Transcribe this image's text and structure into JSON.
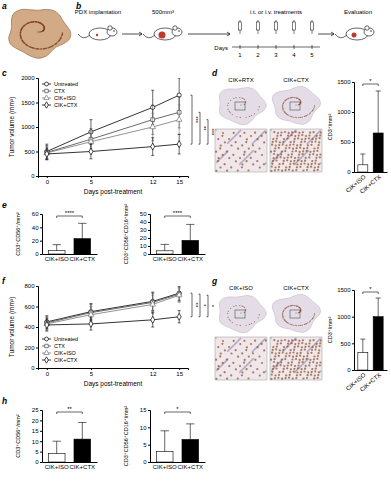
{
  "chart_data": [
    {
      "type": "line",
      "xlabel": "Days post-treatment",
      "ylabel": "Tumor volume (mm³)",
      "x": [
        0,
        5,
        12,
        15
      ],
      "xlim": [
        -1,
        16
      ],
      "xticks": [
        0,
        5,
        12,
        15
      ],
      "ylim": [
        0,
        2000
      ],
      "yticks": [
        0,
        500,
        1000,
        1500,
        2000
      ],
      "legend": "upper left",
      "series": [
        {
          "name": "Untreated",
          "color": "#000000",
          "marker": "circle",
          "values": [
            500,
            900,
            1400,
            1650
          ],
          "errors": [
            150,
            250,
            350,
            350
          ]
        },
        {
          "name": "CTX",
          "color": "#444444",
          "marker": "square",
          "values": [
            480,
            750,
            1150,
            1300
          ],
          "errors": [
            140,
            220,
            300,
            320
          ]
        },
        {
          "name": "CIK+ISO",
          "color": "#777777",
          "marker": "triangle",
          "values": [
            470,
            700,
            1000,
            1150
          ],
          "errors": [
            130,
            200,
            280,
            300
          ]
        },
        {
          "name": "CIK+CTX",
          "color": "#000000",
          "marker": "diamond",
          "values": [
            450,
            500,
            600,
            650
          ],
          "errors": [
            120,
            150,
            180,
            200
          ]
        }
      ],
      "significance": [
        "***",
        "**",
        "***"
      ]
    },
    {
      "type": "bar",
      "ylabel": "CD3⁺/mm²",
      "categories": [
        "CIK+ISO",
        "CIK+CTX"
      ],
      "values": [
        120,
        650
      ],
      "errors": [
        180,
        700
      ],
      "colors": [
        "#ffffff",
        "#000000"
      ],
      "ylim": [
        0,
        1500
      ],
      "yticks": [
        0,
        500,
        1000,
        1500
      ],
      "significance": "*"
    },
    {
      "type": "bar",
      "ylabel": "CD3⁺CD56⁺/mm²",
      "categories": [
        "CIK+ISO",
        "CIK+CTX"
      ],
      "values": [
        5,
        23
      ],
      "errors": [
        9,
        23
      ],
      "colors": [
        "#ffffff",
        "#000000"
      ],
      "ylim": [
        0,
        60
      ],
      "yticks": [
        0,
        20,
        40,
        60
      ],
      "significance": "****"
    },
    {
      "type": "bar",
      "ylabel": "CD3⁺CD56⁺CD16⁺/mm²",
      "categories": [
        "CIK+ISO",
        "CIK+CTX"
      ],
      "values": [
        4,
        17
      ],
      "errors": [
        8,
        20
      ],
      "colors": [
        "#ffffff",
        "#000000"
      ],
      "ylim": [
        0,
        50
      ],
      "yticks": [
        0,
        10,
        20,
        30,
        40,
        50
      ],
      "significance": "****"
    },
    {
      "type": "line",
      "xlabel": "Days post-treatment",
      "ylabel": "Tumor volume (mm³)",
      "x": [
        0,
        5,
        12,
        15
      ],
      "xlim": [
        -1,
        16
      ],
      "xticks": [
        0,
        5,
        12,
        15
      ],
      "ylim": [
        0,
        800
      ],
      "yticks": [
        0,
        200,
        400,
        600,
        800
      ],
      "legend": "lower left",
      "series": [
        {
          "name": "Untreated",
          "color": "#000000",
          "marker": "circle",
          "values": [
            450,
            550,
            650,
            730
          ],
          "errors": [
            60,
            80,
            90,
            70
          ]
        },
        {
          "name": "CTX",
          "color": "#444444",
          "marker": "square",
          "values": [
            440,
            540,
            640,
            720
          ],
          "errors": [
            60,
            80,
            90,
            70
          ]
        },
        {
          "name": "CIK+ISO",
          "color": "#777777",
          "marker": "triangle",
          "values": [
            430,
            520,
            620,
            710
          ],
          "errors": [
            60,
            80,
            90,
            70
          ]
        },
        {
          "name": "CIK+CTX",
          "color": "#000000",
          "marker": "diamond",
          "values": [
            420,
            430,
            470,
            500
          ],
          "errors": [
            60,
            60,
            70,
            60
          ]
        }
      ],
      "significance": [
        "**",
        "*",
        "*"
      ]
    },
    {
      "type": "bar",
      "ylabel": "CD3⁺/mm²",
      "categories": [
        "CIK+ISO",
        "CIK+CTX"
      ],
      "values": [
        330,
        1000
      ],
      "errors": [
        250,
        350
      ],
      "colors": [
        "#ffffff",
        "#000000"
      ],
      "ylim": [
        0,
        1500
      ],
      "yticks": [
        0,
        500,
        1000,
        1500
      ],
      "significance": "*"
    },
    {
      "type": "bar",
      "ylabel": "CD3⁺CD56⁺/mm²",
      "categories": [
        "CIK+ISO",
        "CIK+CTX"
      ],
      "values": [
        4,
        11
      ],
      "errors": [
        6,
        8
      ],
      "colors": [
        "#ffffff",
        "#000000"
      ],
      "ylim": [
        0,
        25
      ],
      "yticks": [
        0,
        5,
        10,
        15,
        20,
        25
      ],
      "significance": "**"
    },
    {
      "type": "bar",
      "ylabel": "CD3⁺CD56⁺CD16⁺/mm²",
      "categories": [
        "CIK+ISO",
        "CIK+CTX"
      ],
      "values": [
        3,
        6.5
      ],
      "errors": [
        6,
        4.5
      ],
      "colors": [
        "#ffffff",
        "#000000"
      ],
      "ylim": [
        0,
        15
      ],
      "yticks": [
        0,
        5,
        10,
        15
      ],
      "significance": "*"
    }
  ],
  "figure": {
    "panel_labels": [
      "a",
      "b",
      "c",
      "d",
      "e",
      "f",
      "g",
      "h"
    ],
    "schematic": {
      "steps": [
        "PDX implantation",
        "500mm³",
        "i.t. or i.v. treatments",
        "Evaluation"
      ],
      "timeline_label": "Days",
      "days": [
        1,
        2,
        3,
        4,
        5
      ]
    },
    "images": {
      "d": [
        "CIK+RTX",
        "CIK+CTX"
      ],
      "g": [
        "CIK+ISO",
        "CIK+CTX"
      ]
    }
  }
}
